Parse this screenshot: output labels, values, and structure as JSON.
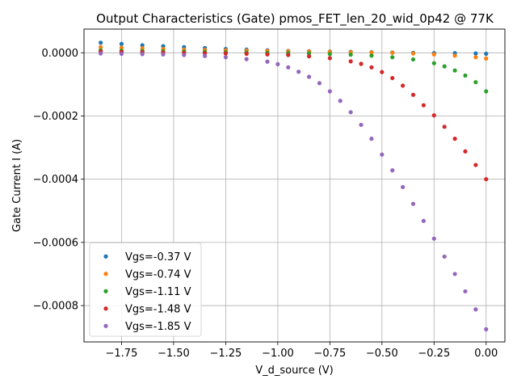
{
  "chart_data": {
    "type": "scatter",
    "title": "Output Characteristics (Gate) pmos_FET_len_20_wid_0p42 @ 77K",
    "xlabel": "V_d_source (V)",
    "ylabel": "Gate Current I (A)",
    "xlim": [
      -1.93,
      0.09
    ],
    "ylim": [
      -0.000915,
      7.5e-05
    ],
    "grid": true,
    "legend_position": "lower-left",
    "x_ticks": [
      -1.75,
      -1.5,
      -1.25,
      -1.0,
      -0.75,
      -0.5,
      -0.25,
      0.0
    ],
    "x_tick_labels": [
      "−1.75",
      "−1.50",
      "−1.25",
      "−1.00",
      "−0.75",
      "−0.50",
      "−0.25",
      "0.00"
    ],
    "y_ticks": [
      0.0,
      -0.0002,
      -0.0004,
      -0.0006,
      -0.0008
    ],
    "y_tick_labels": [
      "0.0000",
      "−0.0002",
      "−0.0004",
      "−0.0006",
      "−0.0008"
    ],
    "series": [
      {
        "name": "Vgs=-0.37 V",
        "color": "#1f77b4",
        "x": [
          -1.85,
          -1.75,
          -1.65,
          -1.55,
          -1.45,
          -1.35,
          -1.25,
          -1.15,
          -1.05,
          -0.95,
          -0.85,
          -0.75,
          -0.65,
          -0.55,
          -0.45,
          -0.35,
          -0.25,
          -0.15,
          -0.05,
          0.0
        ],
        "y": [
          3.2e-05,
          2.8e-05,
          2.4e-05,
          2.1e-05,
          1.8e-05,
          1.5e-05,
          1.2e-05,
          1e-05,
          8e-06,
          6e-06,
          5e-06,
          4e-06,
          3e-06,
          2e-06,
          1e-06,
          0.0,
          -1e-06,
          -1e-06,
          -2e-06,
          -3e-06
        ]
      },
      {
        "name": "Vgs=-0.74 V",
        "color": "#ff7f0e",
        "x": [
          -1.85,
          -1.75,
          -1.65,
          -1.55,
          -1.45,
          -1.35,
          -1.25,
          -1.15,
          -1.05,
          -0.95,
          -0.85,
          -0.75,
          -0.65,
          -0.55,
          -0.45,
          -0.35,
          -0.25,
          -0.15,
          -0.05,
          0.0
        ],
        "y": [
          1.8e-05,
          1.6e-05,
          1.4e-05,
          1.2e-05,
          1e-05,
          9e-06,
          8e-06,
          7e-06,
          6e-06,
          5e-06,
          4e-06,
          3e-06,
          2e-06,
          1e-06,
          0.0,
          -2e-06,
          -5e-06,
          -9e-06,
          -1.4e-05,
          -1.8e-05
        ]
      },
      {
        "name": "Vgs=-1.11 V",
        "color": "#2ca02c",
        "x": [
          -1.85,
          -1.75,
          -1.65,
          -1.55,
          -1.45,
          -1.35,
          -1.25,
          -1.15,
          -1.05,
          -0.95,
          -0.85,
          -0.75,
          -0.65,
          -0.55,
          -0.45,
          -0.35,
          -0.25,
          -0.2,
          -0.15,
          -0.1,
          -0.05,
          0.0
        ],
        "y": [
          8e-06,
          7e-06,
          6e-06,
          5e-06,
          4e-06,
          3e-06,
          2e-06,
          1e-06,
          0.0,
          -1e-06,
          -2e-06,
          -4e-06,
          -6e-06,
          -9e-06,
          -1.4e-05,
          -2.1e-05,
          -3.3e-05,
          -4.3e-05,
          -5.6e-05,
          -7.2e-05,
          -9.3e-05,
          -0.000122
        ]
      },
      {
        "name": "Vgs=-1.48 V",
        "color": "#d62728",
        "x": [
          -1.85,
          -1.75,
          -1.65,
          -1.55,
          -1.45,
          -1.35,
          -1.25,
          -1.15,
          -1.05,
          -0.95,
          -0.85,
          -0.75,
          -0.65,
          -0.6,
          -0.55,
          -0.5,
          -0.45,
          -0.4,
          -0.35,
          -0.3,
          -0.25,
          -0.2,
          -0.15,
          -0.1,
          -0.05,
          0.0
        ],
        "y": [
          4e-06,
          3e-06,
          2e-06,
          1e-06,
          0.0,
          -1e-06,
          -2e-06,
          -3e-06,
          -5e-06,
          -7e-06,
          -1.1e-05,
          -1.7e-05,
          -2.7e-05,
          -3.5e-05,
          -4.6e-05,
          -6.1e-05,
          -8e-05,
          -0.000104,
          -0.000133,
          -0.000166,
          -0.000198,
          -0.000234,
          -0.000272,
          -0.000312,
          -0.000355,
          -0.0004
        ]
      },
      {
        "name": "Vgs=-1.85 V",
        "color": "#9467bd",
        "x": [
          -1.85,
          -1.75,
          -1.65,
          -1.55,
          -1.45,
          -1.35,
          -1.25,
          -1.15,
          -1.05,
          -1.0,
          -0.95,
          -0.9,
          -0.85,
          -0.8,
          -0.75,
          -0.7,
          -0.65,
          -0.6,
          -0.55,
          -0.5,
          -0.45,
          -0.4,
          -0.35,
          -0.3,
          -0.25,
          -0.2,
          -0.15,
          -0.1,
          -0.05,
          0.0
        ],
        "y": [
          -2e-06,
          -3e-06,
          -4e-06,
          -5e-06,
          -7e-06,
          -1e-05,
          -1.4e-05,
          -2e-05,
          -2.8e-05,
          -3.6e-05,
          -4.6e-05,
          -6e-05,
          -7.6e-05,
          -9.6e-05,
          -0.000122,
          -0.000152,
          -0.000188,
          -0.000228,
          -0.000272,
          -0.000322,
          -0.000372,
          -0.000425,
          -0.000478,
          -0.000532,
          -0.000588,
          -0.000645,
          -0.0007,
          -0.000755,
          -0.000812,
          -0.000875
        ]
      }
    ]
  }
}
